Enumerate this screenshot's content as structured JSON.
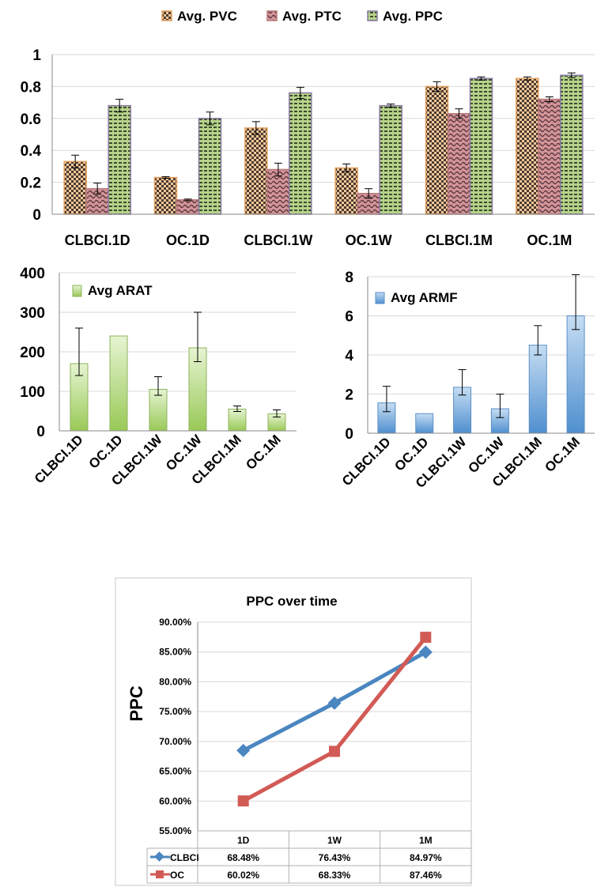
{
  "chart_data": [
    {
      "type": "bar",
      "categories": [
        "CLBCI.1D",
        "OC.1D",
        "CLBCI.1W",
        "OC.1W",
        "CLBCI.1M",
        "OC.1M"
      ],
      "series": [
        {
          "name": "Avg. PVC",
          "values": [
            0.33,
            0.23,
            0.54,
            0.29,
            0.8,
            0.85
          ],
          "errors": [
            0.04,
            0.005,
            0.04,
            0.025,
            0.03,
            0.01
          ],
          "color": "#e9a36a"
        },
        {
          "name": "Avg. PTC",
          "values": [
            0.16,
            0.09,
            0.28,
            0.13,
            0.63,
            0.72
          ],
          "errors": [
            0.035,
            0.005,
            0.04,
            0.03,
            0.03,
            0.015
          ],
          "color": "#c4787d"
        },
        {
          "name": "Avg. PPC",
          "values": [
            0.68,
            0.6,
            0.76,
            0.68,
            0.85,
            0.87
          ],
          "errors": [
            0.04,
            0.04,
            0.035,
            0.01,
            0.01,
            0.015
          ],
          "color": "#8fb35d"
        }
      ],
      "legend_position": "top",
      "ylim": [
        0,
        1
      ],
      "yticks": [
        "0",
        "0.2",
        "0.4",
        "0.6",
        "0.8",
        "1"
      ],
      "grid": true
    },
    {
      "type": "bar",
      "categories": [
        "CLBCI.1D",
        "OC.1D",
        "CLBCI.1W",
        "OC.1W",
        "CLBCI.1M",
        "OC.1M"
      ],
      "series": [
        {
          "name": "Avg ARAT",
          "values": [
            170,
            240,
            105,
            210,
            55,
            43
          ],
          "err_low": [
            30,
            0,
            15,
            35,
            6,
            8
          ],
          "err_high": [
            90,
            0,
            32,
            90,
            8,
            10
          ],
          "color": "#aad36c"
        }
      ],
      "legend_position": "top-left",
      "ylim": [
        0,
        400
      ],
      "yticks": [
        "0",
        "100",
        "200",
        "300",
        "400"
      ],
      "grid": true
    },
    {
      "type": "bar",
      "categories": [
        "CLBCI.1D",
        "OC.1D",
        "CLBCI.1W",
        "OC.1W",
        "CLBCI.1M",
        "OC.1M"
      ],
      "series": [
        {
          "name": "Avg ARMF",
          "values": [
            1.55,
            1.0,
            2.35,
            1.25,
            4.5,
            6.0
          ],
          "err_low": [
            0.45,
            0,
            0.4,
            0.45,
            0.5,
            0.7
          ],
          "err_high": [
            0.85,
            0,
            0.9,
            0.75,
            1.0,
            2.1
          ],
          "color": "#5b9bd5"
        }
      ],
      "legend_position": "top-left",
      "ylim": [
        0,
        8
      ],
      "yticks": [
        "0",
        "2",
        "4",
        "6",
        "8"
      ],
      "grid": true
    },
    {
      "type": "line",
      "title": "PPC over time",
      "ylabel": "PPC",
      "categories": [
        "1D",
        "1W",
        "1M"
      ],
      "series": [
        {
          "name": "CLBCI",
          "values": [
            0.6848,
            0.7643,
            0.8497
          ],
          "labels": [
            "68.48%",
            "76.43%",
            "84.97%"
          ],
          "color": "#4a86c0",
          "marker": "diamond"
        },
        {
          "name": "OC",
          "values": [
            0.6002,
            0.6833,
            0.8746
          ],
          "labels": [
            "60.02%",
            "68.33%",
            "87.46%"
          ],
          "color": "#d25a55",
          "marker": "square"
        }
      ],
      "ylim": [
        0.55,
        0.9
      ],
      "yticks": [
        "55.00%",
        "60.00%",
        "65.00%",
        "70.00%",
        "75.00%",
        "80.00%",
        "85.00%",
        "90.00%"
      ],
      "data_table": true,
      "grid": true
    }
  ]
}
